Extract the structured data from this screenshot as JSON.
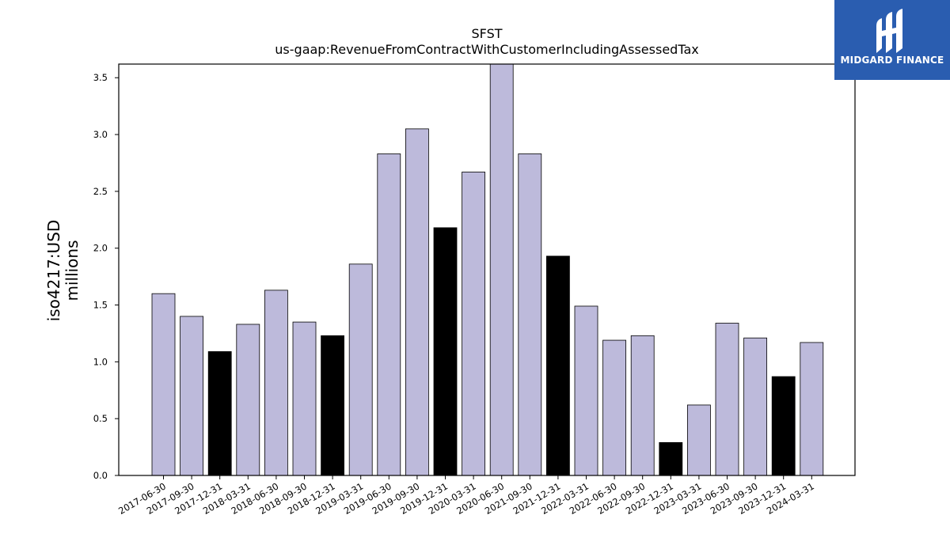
{
  "chart_data": {
    "type": "bar",
    "title": "SFST",
    "subtitle": "us-gaap:RevenueFromContractWithCustomerIncludingAssessedTax",
    "ylabel_line1": "iso4217:USD",
    "ylabel_line2": "millions",
    "categories": [
      "2017-06-30",
      "2017-09-30",
      "2017-12-31",
      "2018-03-31",
      "2018-06-30",
      "2018-09-30",
      "2018-12-31",
      "2019-03-31",
      "2019-06-30",
      "2019-09-30",
      "2019-12-31",
      "2020-03-31",
      "2020-06-30",
      "2021-09-30",
      "2021-12-31",
      "2022-03-31",
      "2022-06-30",
      "2022-09-30",
      "2022-12-31",
      "2023-03-31",
      "2023-06-30",
      "2023-09-30",
      "2023-12-31",
      "2024-03-31"
    ],
    "values": [
      1.6,
      1.4,
      1.09,
      1.33,
      1.63,
      1.35,
      1.23,
      1.86,
      2.83,
      3.05,
      2.18,
      2.67,
      3.62,
      2.83,
      1.93,
      1.49,
      1.19,
      1.23,
      0.29,
      0.62,
      1.34,
      1.21,
      0.87,
      1.17
    ],
    "highlight": [
      false,
      false,
      true,
      false,
      false,
      false,
      true,
      false,
      false,
      false,
      true,
      false,
      false,
      false,
      true,
      false,
      false,
      false,
      true,
      false,
      false,
      false,
      true,
      false
    ],
    "ylim": [
      0,
      3.62
    ],
    "yticks": [
      0.0,
      0.5,
      1.0,
      1.5,
      2.0,
      2.5,
      3.0,
      3.5
    ],
    "ytick_labels": [
      "0.0",
      "0.5",
      "1.0",
      "1.5",
      "2.0",
      "2.5",
      "3.0",
      "3.5"
    ],
    "colors": {
      "bar": "#bdbadb",
      "highlight": "#000000",
      "edge": "#000000"
    },
    "grid": false
  },
  "logo": {
    "text": "MIDGARD FINANCE",
    "background": "#2a5db0"
  }
}
